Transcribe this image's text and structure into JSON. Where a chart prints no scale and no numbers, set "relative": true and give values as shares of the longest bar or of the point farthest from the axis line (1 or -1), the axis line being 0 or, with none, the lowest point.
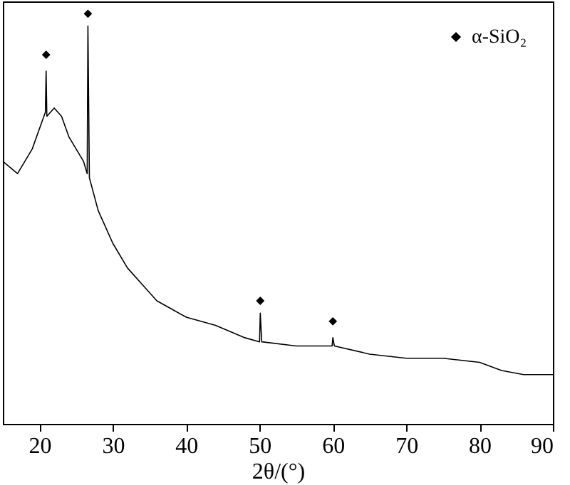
{
  "chart_data": {
    "type": "line",
    "xlabel": "2θ/(°)",
    "relative": true,
    "xlim": [
      15,
      90
    ],
    "xticks": [
      20,
      30,
      40,
      50,
      60,
      70,
      80,
      90
    ],
    "legend": "top right",
    "series": [
      {
        "color": "#000000",
        "x": [
          15,
          17,
          19,
          20,
          20.8,
          20.9,
          21.0,
          22,
          23,
          24,
          25,
          26,
          26.5,
          26.6,
          26.8,
          28,
          30,
          32,
          34,
          36,
          38,
          40,
          44,
          48,
          50,
          50.1,
          50.3,
          55,
          59.9,
          60,
          60.2,
          65,
          70,
          75,
          80,
          83,
          86,
          90
        ],
        "values": [
          0.64,
          0.61,
          0.67,
          0.72,
          0.76,
          0.86,
          0.75,
          0.77,
          0.75,
          0.7,
          0.67,
          0.64,
          0.61,
          0.97,
          0.6,
          0.52,
          0.44,
          0.38,
          0.34,
          0.3,
          0.28,
          0.26,
          0.24,
          0.21,
          0.2,
          0.27,
          0.2,
          0.19,
          0.19,
          0.21,
          0.19,
          0.17,
          0.16,
          0.16,
          0.15,
          0.13,
          0.12,
          0.12
        ]
      },
      {
        "type": "scatter",
        "name": "α-SiO₂",
        "marker": "diamond",
        "color": "#000000",
        "x": [
          20.9,
          26.6,
          50.1,
          60.0
        ],
        "values": [
          0.9,
          1,
          0.3,
          0.25
        ]
      }
    ]
  }
}
